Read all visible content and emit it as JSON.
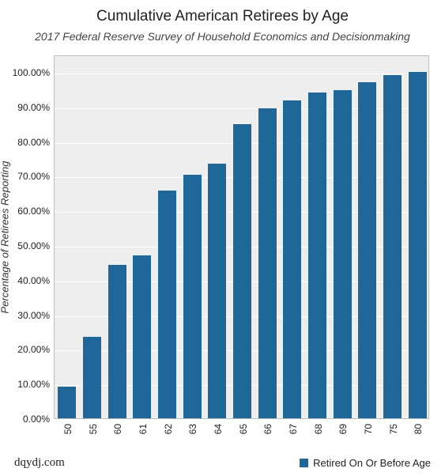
{
  "chart": {
    "type": "bar",
    "title": "Cumulative American Retirees by Age",
    "subtitle": "2017 Federal Reserve Survey of Household Economics and Decisionmaking",
    "ylabel": "Percentage of Retirees Reporting",
    "categories": [
      "50",
      "55",
      "60",
      "61",
      "62",
      "63",
      "64",
      "65",
      "66",
      "67",
      "68",
      "69",
      "70",
      "75",
      "80"
    ],
    "values": [
      9.2,
      23.5,
      44.4,
      47.0,
      65.7,
      70.3,
      73.5,
      85.0,
      89.5,
      91.8,
      94.0,
      94.8,
      97.0,
      99.0,
      100.0
    ],
    "bar_color": "#1f6699",
    "background_color": "#ffffff",
    "plot_background": "#eeeeee",
    "grid_color": "#ffffff",
    "axis_border_color": "#bdbdbd",
    "text_color": "#222222",
    "title_fontsize": 19,
    "subtitle_fontsize": 14,
    "ylabel_fontsize": 13,
    "tick_fontsize": 12,
    "ylim": [
      0,
      105
    ],
    "ytick_step": 10,
    "ytick_format": "0.00%",
    "bar_width_ratio": 0.72,
    "x_tick_rotation": -90,
    "legend": {
      "label": "Retired On Or Before Age",
      "swatch_color": "#1f6699",
      "position": "bottom-right"
    },
    "source": "dqydj.com"
  }
}
